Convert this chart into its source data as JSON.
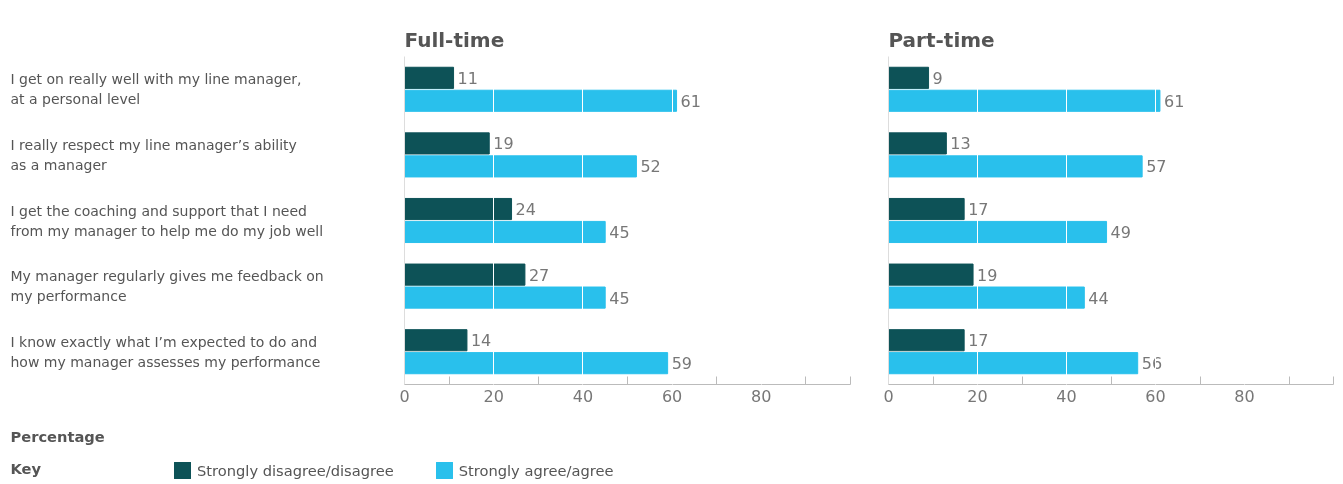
{
  "chart_data": [
    {
      "type": "bar",
      "orientation": "horizontal",
      "title": "Full-time",
      "xlabel": "Percentage",
      "legend_title": "Key",
      "legend": "bottom",
      "data_labels": true,
      "grid": "x",
      "categories": [
        "I get on really well with my line manager, at a personal level",
        "I really respect my line manager’s ability as a manager",
        "I get the coaching and support that I need from my manager to help me do my job well",
        "My manager regularly gives me feedback on my performance",
        "I know exactly what I’m expected to do and how my manager assesses my performance"
      ],
      "xlim": [
        0,
        100
      ],
      "xticks": [
        0,
        {
          "value": 10,
          "label": null
        },
        20,
        {
          "value": 30,
          "label": null
        },
        40,
        {
          "value": 50,
          "label": null
        },
        60,
        {
          "value": 70,
          "label": null
        },
        80,
        {
          "value": 90,
          "label": null
        },
        {
          "value": 100,
          "label": null
        }
      ],
      "series": [
        {
          "name": "Strongly disagree/disagree",
          "color": "#0d5257",
          "values": [
            11,
            19,
            24,
            27,
            14
          ]
        },
        {
          "name": "Strongly agree/agree",
          "color": "#29c0ec",
          "values": [
            61,
            52,
            45,
            45,
            59
          ]
        }
      ]
    },
    {
      "type": "bar",
      "orientation": "horizontal",
      "title": "Part-time",
      "data_labels": true,
      "grid": "x",
      "categories": [
        null,
        null,
        null,
        null,
        null
      ],
      "xlim": [
        0,
        100
      ],
      "xticks": [
        0,
        {
          "value": 10,
          "label": null
        },
        20,
        {
          "value": 30,
          "label": null
        },
        40,
        {
          "value": 50,
          "label": null
        },
        60,
        {
          "value": 70,
          "label": null
        },
        80,
        {
          "value": 90,
          "label": null
        },
        {
          "value": 100,
          "label": null
        }
      ],
      "series": [
        {
          "name": "Strongly disagree/disagree",
          "color": "#0d5257",
          "values": [
            9,
            13,
            17,
            19,
            17
          ]
        },
        {
          "name": "Strongly agree/agree",
          "color": "#29c0ec",
          "values": [
            61,
            57,
            49,
            44,
            56
          ]
        }
      ]
    }
  ]
}
